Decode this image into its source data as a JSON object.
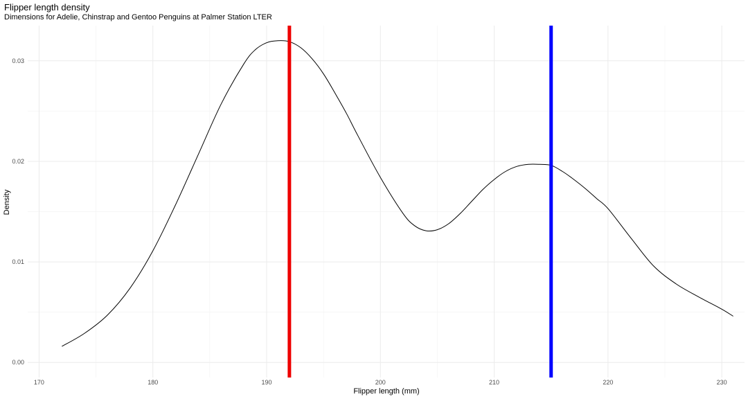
{
  "chart_data": {
    "type": "line",
    "title": "Flipper length density",
    "subtitle": "Dimensions for Adelie, Chinstrap and Gentoo Penguins at Palmer Station LTER",
    "xlabel": "Flipper length (mm)",
    "ylabel": "Density",
    "xlim": [
      169,
      232
    ],
    "ylim": [
      -0.0015,
      0.0335
    ],
    "x_ticks": [
      170,
      180,
      190,
      200,
      210,
      220,
      230
    ],
    "y_ticks": [
      0.0,
      0.01,
      0.02,
      0.03
    ],
    "y_tick_labels": [
      "0.00",
      "0.01",
      "0.02",
      "0.03"
    ],
    "grid": true,
    "series": [
      {
        "color": "#000000",
        "x": [
          172,
          174,
          176,
          178,
          180,
          182,
          184,
          186,
          188,
          189,
          190,
          191,
          192,
          193,
          194,
          195,
          196,
          197,
          198,
          200,
          202,
          203,
          204,
          205,
          206,
          207,
          208,
          209,
          210,
          211,
          212,
          213,
          214,
          215,
          216,
          217,
          218,
          219,
          220,
          222,
          224,
          226,
          228,
          230,
          231
        ],
        "y": [
          0.0016,
          0.0029,
          0.0047,
          0.0074,
          0.0111,
          0.0157,
          0.0207,
          0.0257,
          0.0297,
          0.0311,
          0.0318,
          0.032,
          0.0319,
          0.0313,
          0.0302,
          0.0287,
          0.0268,
          0.0248,
          0.0226,
          0.0184,
          0.0148,
          0.0136,
          0.0131,
          0.0132,
          0.0138,
          0.0148,
          0.016,
          0.0172,
          0.0182,
          0.019,
          0.0195,
          0.0197,
          0.0197,
          0.0196,
          0.019,
          0.0182,
          0.0173,
          0.0163,
          0.0153,
          0.0124,
          0.0096,
          0.0078,
          0.0065,
          0.0053,
          0.0046
        ]
      }
    ],
    "vlines": [
      {
        "x": 192,
        "color": "#ee0000"
      },
      {
        "x": 215,
        "color": "#0000ff"
      }
    ]
  }
}
